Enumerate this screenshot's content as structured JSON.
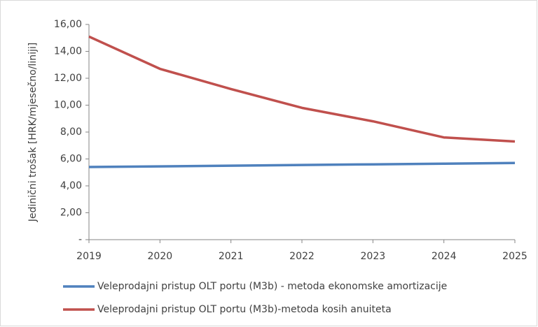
{
  "chart_data": {
    "type": "line",
    "y_label": "Jedinični trošak [HRK/mjesečno/liniji]",
    "x": [
      2019,
      2020,
      2021,
      2022,
      2023,
      2024,
      2025
    ],
    "xlim": [
      2019,
      2025
    ],
    "xticks": [
      2019,
      2020,
      2021,
      2022,
      2023,
      2024,
      2025
    ],
    "ylim": [
      0,
      16
    ],
    "yticks": [
      {
        "value": 0,
        "label": "-"
      },
      {
        "value": 2,
        "label": "2,00"
      },
      {
        "value": 4,
        "label": "4,00"
      },
      {
        "value": 6,
        "label": "6,00"
      },
      {
        "value": 8,
        "label": "8,00"
      },
      {
        "value": 10,
        "label": "10,00"
      },
      {
        "value": 12,
        "label": "12,00"
      },
      {
        "value": 14,
        "label": "14,00"
      },
      {
        "value": 16,
        "label": "16,00"
      }
    ],
    "series": [
      {
        "name": "Veleprodajni pristup OLT portu (M3b) - metoda ekonomske amortizacije",
        "color": "#4f81bd",
        "values": [
          5.4,
          5.45,
          5.5,
          5.55,
          5.6,
          5.65,
          5.7
        ]
      },
      {
        "name": "Veleprodajni pristup OLT portu (M3b)-metoda kosih anuiteta",
        "color": "#c0504d",
        "values": [
          15.1,
          12.7,
          11.2,
          9.8,
          8.8,
          7.6,
          7.3
        ]
      }
    ]
  }
}
